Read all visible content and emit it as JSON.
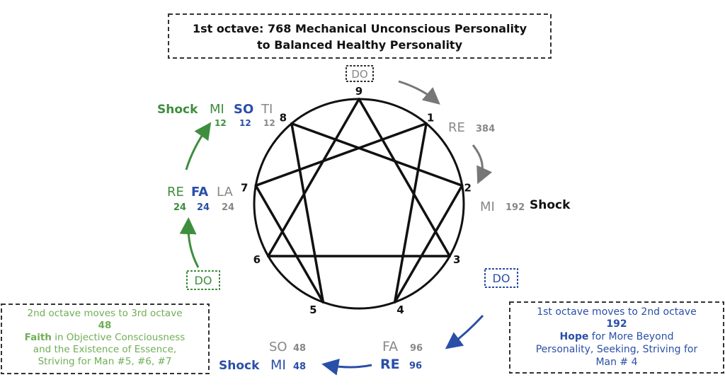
{
  "colors": {
    "green": "#3e8e3e",
    "light_green": "#6fae55",
    "blue": "#2a4fa8",
    "gray": "#8a8a8a",
    "black": "#111111"
  },
  "title_box": {
    "line1": "1st octave: 768 Mechanical Unconscious Personality",
    "line2": "to Balanced Healthy Personality"
  },
  "points": [
    "9",
    "1",
    "2",
    "3",
    "4",
    "5",
    "6",
    "7",
    "8"
  ],
  "notes": {
    "do_top": "DO",
    "re_384": {
      "note": "RE",
      "num": "384"
    },
    "mi_192": {
      "note": "MI",
      "num": "192",
      "shock": "Shock"
    },
    "do_right": "DO",
    "fa_96": {
      "note": "FA",
      "num": "96"
    },
    "re_96": {
      "note": "RE",
      "num": "96"
    },
    "so_48": {
      "note": "SO",
      "num": "48"
    },
    "mi_48": {
      "note": "MI",
      "num": "48",
      "shock": "Shock"
    },
    "do_left": "DO",
    "row_24": {
      "re": "RE",
      "fa": "FA",
      "la": "LA",
      "re_num": "24",
      "fa_num": "24",
      "la_num": "24"
    },
    "row_12": {
      "shock": "Shock",
      "mi": "MI",
      "so": "SO",
      "ti": "TI",
      "mi_num": "12",
      "so_num": "12",
      "ti_num": "12"
    }
  },
  "left_box": {
    "line1": "2nd octave moves to 3rd octave",
    "line2": "48",
    "line3_bold": "Faith",
    "line3_rest": " in Objective Consciousness",
    "line4": "and the Existence of Essence,",
    "line5": "Striving for Man #5, #6, #7"
  },
  "right_box": {
    "line1": "1st octave moves to 2nd octave",
    "line2": "192",
    "line3_bold": "Hope",
    "line3_rest": " for More Beyond",
    "line4": "Personality, Seeking, Striving for",
    "line5": "Man # 4"
  }
}
